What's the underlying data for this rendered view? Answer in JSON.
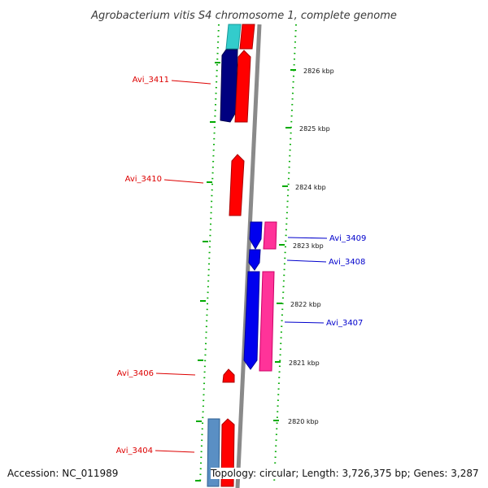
{
  "header": {
    "title": "Agrobacterium vitis S4 chromosome 1, complete genome"
  },
  "footer": {
    "accession": "Accession: NC_011989",
    "topology": "Topology: circular; Length: 3,726,375 bp; Genes: 3,287"
  },
  "scale_ticks": [
    "2826 kbp",
    "2825 kbp",
    "2824 kbp",
    "2823 kbp",
    "2822 kbp",
    "2821 kbp",
    "2820 kbp"
  ],
  "gene_labels": [
    "Avi_3411",
    "Avi_3410",
    "Avi_3409",
    "Avi_3408",
    "Avi_3407",
    "Avi_3406",
    "Avi_3404"
  ],
  "colors": {
    "forward_cds": "#ff0000",
    "reverse_cds": "#0000ee",
    "navy_feature": "#000080",
    "cyan_feature": "#33cccc",
    "magenta_feature": "#ff3399",
    "steelblue_feature": "#5a8fc4",
    "backbone": "#888888",
    "tick": "#00aa00",
    "forward_label": "#dd0000",
    "reverse_label": "#0000cc"
  }
}
